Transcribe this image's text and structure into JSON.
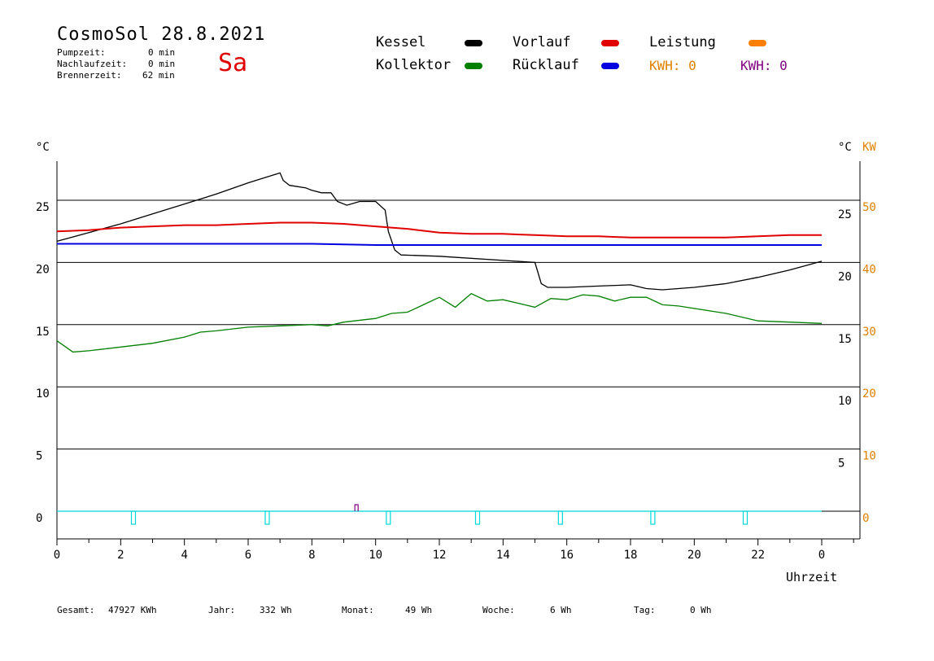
{
  "header": {
    "title": "CosmoSol 28.8.2021",
    "day": "Sa",
    "stats": [
      {
        "label": "Pumpzeit:",
        "value": "0 min"
      },
      {
        "label": "Nachlaufzeit:",
        "value": "0 min"
      },
      {
        "label": "Brennerzeit:",
        "value": "62 min"
      }
    ]
  },
  "legend": {
    "kessel": "Kessel",
    "kollektor": "Kollektor",
    "vorlauf": "Vorlauf",
    "ruecklauf": "Rücklauf",
    "leistung": "Leistung",
    "kwh1": "KWH: 0",
    "kwh2": "KWH: 0"
  },
  "colors": {
    "kessel": "#000000",
    "kollektor": "#008000",
    "vorlauf": "#e00000",
    "ruecklauf": "#0000e0",
    "leistung": "#ff8000",
    "kwh2": "#800080",
    "pump": "#00d8d8"
  },
  "footer": {
    "gesamt_label": "Gesamt:",
    "gesamt_value": "47927 KWh",
    "jahr_label": "Jahr:",
    "jahr_value": "332 Wh",
    "monat_label": "Monat:",
    "monat_value": "49 Wh",
    "woche_label": "Woche:",
    "woche_value": "6 Wh",
    "tag_label": "Tag:",
    "tag_value": "0 Wh"
  },
  "chart_data": {
    "type": "line",
    "xlabel": "Uhrzeit",
    "x_ticks": [
      "0",
      "2",
      "4",
      "6",
      "8",
      "10",
      "12",
      "14",
      "16",
      "18",
      "20",
      "22",
      "0"
    ],
    "y_left_unit": "°C",
    "y_right_unit": "°C",
    "y_right2_unit": "KW",
    "y_left_ticks": [
      "0",
      "5",
      "10",
      "15",
      "20",
      "25"
    ],
    "y_right_ticks": [
      "5",
      "10",
      "15",
      "20",
      "25"
    ],
    "y_right2_ticks": [
      "0",
      "10",
      "20",
      "30",
      "40",
      "50"
    ],
    "xlim": [
      0,
      24
    ],
    "ylim": [
      -2,
      28.5
    ],
    "grid": true,
    "series": [
      {
        "name": "Kessel",
        "color": "#000000",
        "x": [
          0,
          1,
          2,
          3,
          4,
          5,
          6,
          6.5,
          7,
          7.1,
          7.3,
          7.8,
          8,
          8.3,
          8.6,
          8.8,
          9.1,
          9.5,
          10,
          10.3,
          10.4,
          10.6,
          10.8,
          12,
          15,
          15.2,
          15.4,
          16,
          17,
          18,
          18.5,
          19,
          20,
          21,
          22,
          23,
          24
        ],
        "y": [
          21.7,
          22.4,
          23.1,
          23.9,
          24.7,
          25.5,
          26.4,
          26.8,
          27.2,
          26.6,
          26.2,
          26.0,
          25.8,
          25.6,
          25.6,
          24.9,
          24.6,
          24.9,
          24.9,
          24.2,
          22.5,
          21.0,
          20.6,
          20.5,
          20.0,
          18.3,
          18.0,
          18.0,
          18.1,
          18.2,
          17.9,
          17.8,
          18.0,
          18.3,
          18.8,
          19.4,
          20.1
        ]
      },
      {
        "name": "Vorlauf",
        "color": "#e00000",
        "x": [
          0,
          1,
          2,
          3,
          4,
          5,
          6,
          7,
          8,
          9,
          10,
          11,
          12,
          13,
          14,
          15,
          16,
          17,
          18,
          19,
          20,
          21,
          22,
          23,
          24
        ],
        "y": [
          22.5,
          22.6,
          22.8,
          22.9,
          23.0,
          23.0,
          23.1,
          23.2,
          23.2,
          23.1,
          22.9,
          22.7,
          22.4,
          22.3,
          22.3,
          22.2,
          22.1,
          22.1,
          22.0,
          22.0,
          22.0,
          22.0,
          22.1,
          22.2,
          22.2
        ]
      },
      {
        "name": "Rücklauf",
        "color": "#0000e0",
        "x": [
          0,
          2,
          4,
          6,
          8,
          10,
          12,
          14,
          16,
          18,
          20,
          22,
          24
        ],
        "y": [
          21.5,
          21.5,
          21.5,
          21.5,
          21.5,
          21.4,
          21.4,
          21.4,
          21.4,
          21.4,
          21.4,
          21.4,
          21.4
        ]
      },
      {
        "name": "Kollektor",
        "color": "#008000",
        "x": [
          0,
          0.5,
          1,
          2,
          3,
          4,
          4.5,
          5,
          6,
          7,
          8,
          8.5,
          9,
          10,
          10.5,
          11,
          11.5,
          12,
          12.5,
          13,
          13.5,
          14,
          14.5,
          15,
          15.5,
          16,
          16.5,
          17,
          17.5,
          18,
          18.5,
          19,
          19.5,
          20,
          21,
          22,
          23,
          24
        ],
        "y": [
          13.7,
          12.8,
          12.9,
          13.2,
          13.5,
          14.0,
          14.4,
          14.5,
          14.8,
          14.9,
          15.0,
          14.9,
          15.2,
          15.5,
          15.9,
          16.0,
          16.6,
          17.2,
          16.4,
          17.5,
          16.9,
          17.0,
          16.7,
          16.4,
          17.1,
          17.0,
          17.4,
          17.3,
          16.9,
          17.2,
          17.2,
          16.6,
          16.5,
          16.3,
          15.9,
          15.3,
          15.2,
          15.1
        ]
      },
      {
        "name": "Pumpe",
        "color": "#00d8d8",
        "x": [
          0,
          24
        ],
        "y": [
          0,
          0
        ],
        "pulses": [
          2.4,
          6.6,
          10.4,
          13.2,
          15.8,
          18.7,
          21.6
        ]
      }
    ]
  }
}
